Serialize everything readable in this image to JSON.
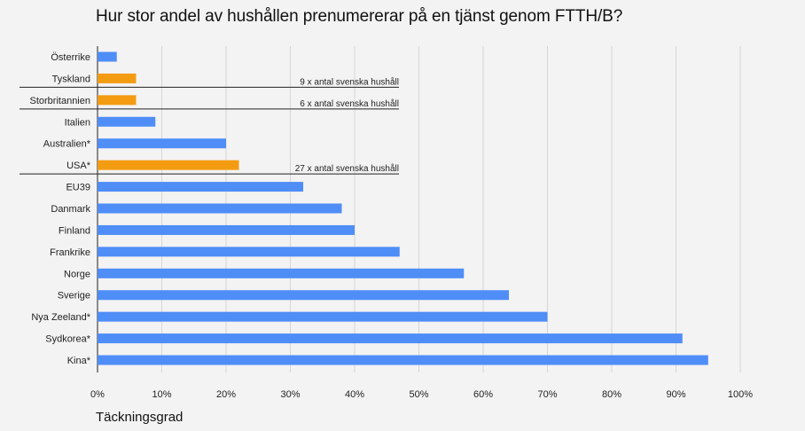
{
  "chart_data": {
    "type": "bar",
    "orientation": "horizontal",
    "title": "Hur stor andel av hushållen prenumererar på en tjänst genom FTTH/B?",
    "xlabel": "Täckningsgrad",
    "ylabel": "",
    "xlim": [
      0,
      100
    ],
    "x_ticks": [
      "0%",
      "10%",
      "20%",
      "30%",
      "40%",
      "50%",
      "60%",
      "70%",
      "80%",
      "90%",
      "100%"
    ],
    "categories": [
      "Österrike",
      "Tyskland",
      "Storbritannien",
      "Italien",
      "Australien*",
      "USA*",
      "EU39",
      "Danmark",
      "Finland",
      "Frankrike",
      "Norge",
      "Sverige",
      "Nya Zeeland*",
      "Sydkorea*",
      "Kina*"
    ],
    "values": [
      3,
      6,
      6,
      9,
      20,
      22,
      32,
      38,
      40,
      47,
      57,
      64,
      70,
      91,
      95
    ],
    "highlighted": [
      "Tyskland",
      "Storbritannien",
      "USA*"
    ],
    "annotations": [
      {
        "category": "Tyskland",
        "text": "9 x antal svenska hushåll"
      },
      {
        "category": "Storbritannien",
        "text": "6 x antal svenska hushåll"
      },
      {
        "category": "USA*",
        "text": "27 x antal svenska hushåll"
      }
    ],
    "colors": {
      "bar": "#4f8df7",
      "highlight": "#f39c12",
      "grid": "#d6d6d6",
      "axis": "#222222"
    },
    "grid": true,
    "legend": "none"
  }
}
